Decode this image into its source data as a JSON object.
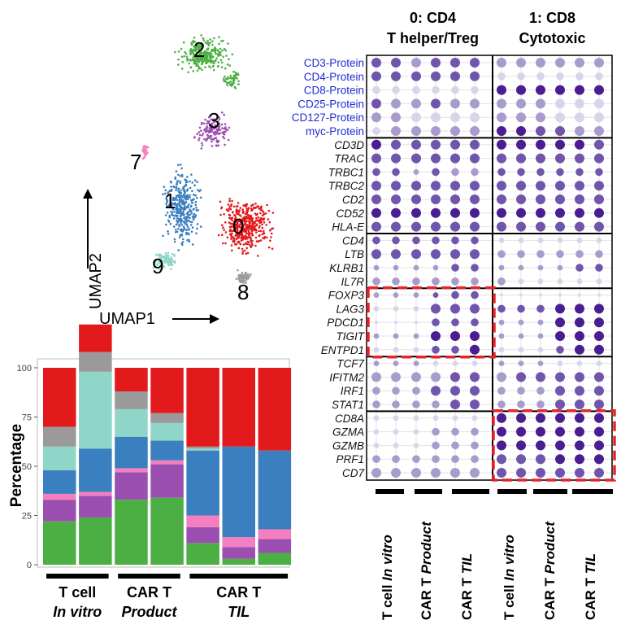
{
  "colors": {
    "c0": "#e31a1c",
    "c1": "#3a7fbf",
    "c2": "#4caf43",
    "c3": "#9b4fb0",
    "c7": "#f47fc0",
    "c8": "#9a9a9a",
    "c9": "#8fd6c8",
    "protein_label": "#1f2bd6",
    "gene_label": "#111111",
    "highlight": "#e8232a"
  },
  "umap": {
    "xlabel": "UMAP1",
    "ylabel": "UMAP2",
    "cluster_labels": [
      "2",
      "3",
      "7",
      "1",
      "0",
      "9",
      "8"
    ]
  },
  "chart_data": [
    {
      "type": "bar",
      "stacked": true,
      "ylabel": "Percentage",
      "ylim": [
        0,
        100
      ],
      "yticks": [
        "0",
        "25",
        "50",
        "75",
        "100"
      ],
      "group_labels": [
        {
          "line1": "T cell",
          "line2": "In vitro"
        },
        {
          "line1": "CAR T",
          "line2": "Product"
        },
        {
          "line1": "CAR T",
          "line2": "TIL"
        }
      ],
      "bars": [
        {
          "segments": [
            22,
            11,
            3,
            12,
            12,
            10,
            30
          ]
        },
        {
          "segments": [
            24,
            11,
            2,
            22,
            39,
            10,
            14
          ]
        },
        {
          "segments": [
            33,
            14,
            2,
            16,
            14,
            9,
            12
          ]
        },
        {
          "segments": [
            34,
            17,
            2,
            10,
            9,
            5,
            23
          ]
        },
        {
          "segments": [
            11,
            8,
            6,
            33,
            1,
            1,
            40
          ]
        },
        {
          "segments": [
            3,
            6,
            5,
            46,
            0,
            0,
            40
          ]
        },
        {
          "segments": [
            6,
            7,
            5,
            40,
            0,
            0,
            42
          ]
        }
      ],
      "segment_order": [
        "c2",
        "c3",
        "c7",
        "c1",
        "c9",
        "c8",
        "c0"
      ]
    },
    {
      "type": "dotplot",
      "column_groups": [
        {
          "title_line1": "0: CD4",
          "title_line2": "T helper/Treg"
        },
        {
          "title_line1": "1: CD8",
          "title_line2": "Cytotoxic"
        }
      ],
      "sample_labels": [
        {
          "plain": "T cell ",
          "italic": "In vitro"
        },
        {
          "plain": "CAR T ",
          "italic": "Product"
        },
        {
          "plain": "CAR T ",
          "italic": "TIL"
        },
        {
          "plain": "T cell ",
          "italic": "In vitro"
        },
        {
          "plain": "CAR T ",
          "italic": "Product"
        },
        {
          "plain": "CAR T ",
          "italic": "TIL"
        }
      ],
      "rows": [
        {
          "label": "CD3-Protein",
          "protein": true,
          "size": [
            3,
            3,
            3,
            3,
            3,
            3,
            3,
            3,
            3,
            3,
            3,
            3
          ],
          "color": [
            3,
            3,
            2,
            3,
            3,
            3,
            2,
            2,
            2,
            2,
            2,
            2
          ]
        },
        {
          "label": "CD4-Protein",
          "protein": true,
          "size": [
            3,
            3,
            3,
            3,
            3,
            3,
            2,
            2,
            2,
            2,
            2,
            2
          ],
          "color": [
            3,
            3,
            3,
            3,
            3,
            3,
            1,
            1,
            1,
            1,
            1,
            1
          ]
        },
        {
          "label": "CD8-Protein",
          "protein": true,
          "size": [
            2,
            2,
            2,
            2,
            2,
            2,
            3,
            3,
            3,
            3,
            3,
            3
          ],
          "color": [
            1,
            1,
            1,
            1,
            1,
            1,
            4,
            4,
            4,
            4,
            4,
            4
          ]
        },
        {
          "label": "CD25-Protein",
          "protein": true,
          "size": [
            3,
            3,
            3,
            3,
            3,
            3,
            3,
            3,
            3,
            3,
            3,
            3
          ],
          "color": [
            3,
            2,
            2,
            3,
            2,
            2,
            2,
            2,
            2,
            1,
            1,
            1
          ]
        },
        {
          "label": "CD127-Protein",
          "protein": true,
          "size": [
            3,
            3,
            3,
            3,
            3,
            3,
            3,
            3,
            3,
            3,
            3,
            3
          ],
          "color": [
            2,
            2,
            1,
            1,
            1,
            1,
            2,
            2,
            2,
            1,
            1,
            1
          ]
        },
        {
          "label": "myc-Protein",
          "protein": true,
          "size": [
            2,
            3,
            3,
            3,
            3,
            3,
            3,
            3,
            3,
            3,
            3,
            3
          ],
          "color": [
            1,
            2,
            2,
            2,
            2,
            2,
            4,
            4,
            3,
            3,
            2,
            2
          ]
        },
        {
          "label": "CD3D",
          "protein": false,
          "size": [
            3,
            3,
            3,
            3,
            3,
            3,
            3,
            3,
            3,
            3,
            3,
            3
          ],
          "color": [
            4,
            3,
            3,
            3,
            3,
            3,
            4,
            4,
            4,
            4,
            4,
            3
          ]
        },
        {
          "label": "TRAC",
          "protein": false,
          "size": [
            3,
            3,
            3,
            3,
            3,
            3,
            3,
            3,
            3,
            3,
            3,
            3
          ],
          "color": [
            3,
            3,
            3,
            3,
            3,
            3,
            3,
            3,
            3,
            3,
            3,
            3
          ]
        },
        {
          "label": "TRBC1",
          "protein": false,
          "size": [
            2,
            2,
            1,
            2,
            2,
            2,
            2,
            2,
            2,
            2,
            2,
            2
          ],
          "color": [
            3,
            3,
            2,
            3,
            2,
            2,
            3,
            3,
            3,
            3,
            3,
            3
          ]
        },
        {
          "label": "TRBC2",
          "protein": false,
          "size": [
            3,
            3,
            3,
            3,
            3,
            3,
            3,
            3,
            3,
            3,
            3,
            3
          ],
          "color": [
            3,
            3,
            3,
            3,
            3,
            3,
            3,
            3,
            3,
            3,
            3,
            3
          ]
        },
        {
          "label": "CD2",
          "protein": false,
          "size": [
            3,
            3,
            3,
            3,
            3,
            3,
            3,
            3,
            3,
            3,
            3,
            3
          ],
          "color": [
            3,
            3,
            3,
            3,
            3,
            3,
            3,
            3,
            3,
            3,
            3,
            3
          ]
        },
        {
          "label": "CD52",
          "protein": false,
          "size": [
            3,
            3,
            3,
            3,
            3,
            3,
            3,
            3,
            3,
            3,
            3,
            3
          ],
          "color": [
            4,
            4,
            4,
            4,
            4,
            4,
            4,
            4,
            4,
            4,
            4,
            4
          ]
        },
        {
          "label": "HLA-E",
          "protein": false,
          "size": [
            3,
            3,
            3,
            3,
            3,
            3,
            3,
            3,
            3,
            3,
            3,
            3
          ],
          "color": [
            3,
            3,
            3,
            3,
            3,
            3,
            3,
            3,
            3,
            3,
            3,
            3
          ]
        },
        {
          "label": "CD4",
          "protein": false,
          "size": [
            2,
            2,
            2,
            2,
            2,
            2,
            1,
            1,
            1,
            1,
            1,
            1
          ],
          "color": [
            3,
            3,
            3,
            3,
            3,
            3,
            1,
            1,
            1,
            1,
            1,
            1
          ]
        },
        {
          "label": "LTB",
          "protein": false,
          "size": [
            3,
            3,
            3,
            3,
            3,
            3,
            2,
            2,
            2,
            2,
            2,
            2
          ],
          "color": [
            3,
            3,
            3,
            3,
            3,
            3,
            2,
            2,
            2,
            2,
            2,
            2
          ]
        },
        {
          "label": "KLRB1",
          "protein": false,
          "size": [
            1,
            1,
            1,
            1,
            2,
            2,
            1,
            1,
            1,
            1,
            2,
            2
          ],
          "color": [
            2,
            2,
            2,
            2,
            3,
            3,
            2,
            2,
            2,
            2,
            3,
            3
          ]
        },
        {
          "label": "IL7R",
          "protein": false,
          "size": [
            2,
            2,
            2,
            2,
            2,
            2,
            2,
            1,
            1,
            1,
            1,
            1
          ],
          "color": [
            2,
            2,
            2,
            2,
            2,
            2,
            2,
            1,
            1,
            1,
            1,
            1
          ]
        },
        {
          "label": "FOXP3",
          "protein": false,
          "size": [
            1,
            1,
            1,
            1,
            2,
            2,
            0,
            0,
            0,
            0,
            0,
            0
          ],
          "color": [
            2,
            2,
            2,
            3,
            3,
            3,
            1,
            1,
            1,
            1,
            1,
            1
          ]
        },
        {
          "label": "LAG3",
          "protein": false,
          "size": [
            1,
            1,
            1,
            3,
            3,
            3,
            2,
            2,
            2,
            3,
            3,
            3
          ],
          "color": [
            1,
            1,
            1,
            3,
            3,
            3,
            3,
            3,
            3,
            4,
            4,
            4
          ]
        },
        {
          "label": "PDCD1",
          "protein": false,
          "size": [
            0,
            0,
            0,
            2,
            2,
            2,
            1,
            1,
            1,
            3,
            3,
            3
          ],
          "color": [
            1,
            1,
            1,
            3,
            3,
            3,
            2,
            2,
            2,
            4,
            4,
            4
          ]
        },
        {
          "label": "TIGIT",
          "protein": false,
          "size": [
            1,
            1,
            1,
            3,
            3,
            3,
            1,
            1,
            1,
            3,
            3,
            3
          ],
          "color": [
            2,
            2,
            2,
            4,
            4,
            4,
            2,
            2,
            2,
            4,
            4,
            4
          ]
        },
        {
          "label": "ENTPD1",
          "protein": false,
          "size": [
            1,
            1,
            1,
            2,
            2,
            3,
            1,
            1,
            1,
            2,
            3,
            3
          ],
          "color": [
            1,
            1,
            1,
            3,
            3,
            4,
            1,
            1,
            1,
            3,
            4,
            4
          ]
        },
        {
          "label": "TCF7",
          "protein": false,
          "size": [
            1,
            1,
            1,
            1,
            1,
            1,
            1,
            1,
            1,
            1,
            1,
            1
          ],
          "color": [
            2,
            2,
            2,
            1,
            1,
            1,
            2,
            2,
            2,
            1,
            1,
            1
          ]
        },
        {
          "label": "IFITM2",
          "protein": false,
          "size": [
            3,
            3,
            3,
            3,
            3,
            3,
            3,
            3,
            3,
            3,
            3,
            3
          ],
          "color": [
            2,
            2,
            2,
            2,
            3,
            3,
            2,
            3,
            3,
            3,
            3,
            3
          ]
        },
        {
          "label": "IRF1",
          "protein": false,
          "size": [
            2,
            2,
            2,
            3,
            3,
            3,
            2,
            2,
            2,
            3,
            3,
            3
          ],
          "color": [
            2,
            2,
            2,
            3,
            3,
            3,
            2,
            2,
            2,
            3,
            3,
            3
          ]
        },
        {
          "label": "STAT1",
          "protein": false,
          "size": [
            2,
            2,
            2,
            2,
            3,
            3,
            2,
            2,
            2,
            3,
            3,
            3
          ],
          "color": [
            2,
            2,
            2,
            2,
            3,
            3,
            2,
            2,
            2,
            3,
            3,
            3
          ]
        },
        {
          "label": "CD8A",
          "protein": false,
          "size": [
            1,
            1,
            1,
            1,
            1,
            1,
            3,
            3,
            3,
            3,
            3,
            3
          ],
          "color": [
            1,
            1,
            1,
            1,
            1,
            1,
            4,
            4,
            4,
            4,
            4,
            4
          ]
        },
        {
          "label": "GZMA",
          "protein": false,
          "size": [
            1,
            1,
            1,
            2,
            2,
            2,
            3,
            3,
            3,
            3,
            3,
            3
          ],
          "color": [
            1,
            1,
            1,
            2,
            2,
            2,
            4,
            4,
            4,
            4,
            4,
            4
          ]
        },
        {
          "label": "GZMB",
          "protein": false,
          "size": [
            1,
            1,
            1,
            2,
            2,
            2,
            3,
            3,
            3,
            3,
            3,
            3
          ],
          "color": [
            1,
            1,
            1,
            2,
            2,
            2,
            4,
            4,
            4,
            4,
            4,
            4
          ]
        },
        {
          "label": "PRF1",
          "protein": false,
          "size": [
            2,
            2,
            2,
            2,
            2,
            2,
            3,
            3,
            3,
            3,
            3,
            3
          ],
          "color": [
            2,
            2,
            2,
            2,
            2,
            2,
            3,
            3,
            3,
            4,
            4,
            4
          ]
        },
        {
          "label": "CD7",
          "protein": false,
          "size": [
            3,
            3,
            3,
            3,
            3,
            3,
            3,
            3,
            3,
            3,
            3,
            3
          ],
          "color": [
            2,
            2,
            2,
            2,
            2,
            2,
            3,
            3,
            3,
            3,
            3,
            3
          ]
        }
      ],
      "row_groups_end": [
        5,
        12,
        16,
        21,
        25,
        30
      ],
      "highlights": [
        {
          "group": 0,
          "rows": [
            17,
            21
          ]
        },
        {
          "group": 1,
          "rows": [
            26,
            30
          ]
        }
      ]
    }
  ]
}
